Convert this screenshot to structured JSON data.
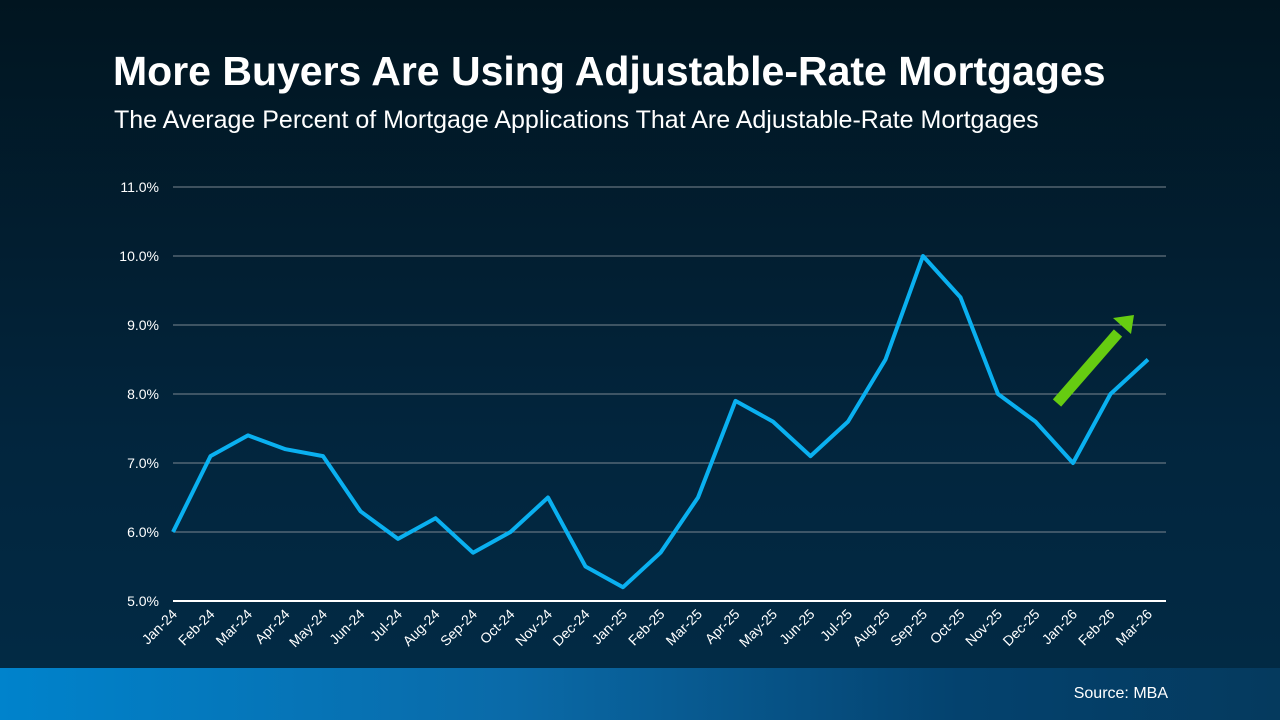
{
  "chart_data": {
    "type": "line",
    "title": "More Buyers Are Using Adjustable-Rate Mortgages",
    "subtitle": "The Average Percent of Mortgage Applications That Are Adjustable-Rate Mortgages",
    "xlabel": "",
    "ylabel": "",
    "ylim": [
      5.0,
      11.0
    ],
    "yticks": [
      "5.0%",
      "6.0%",
      "7.0%",
      "8.0%",
      "9.0%",
      "10.0%",
      "11.0%"
    ],
    "grid": "horizontal",
    "categories": [
      "Jan-24",
      "Feb-24",
      "Mar-24",
      "Apr-24",
      "May-24",
      "Jun-24",
      "Jul-24",
      "Aug-24",
      "Sep-24",
      "Oct-24",
      "Nov-24",
      "Dec-24",
      "Jan-25",
      "Feb-25",
      "Mar-25",
      "Apr-25",
      "May-25",
      "Jun-25",
      "Jul-25",
      "Aug-25",
      "Sep-25",
      "Oct-25",
      "Nov-25",
      "Dec-25",
      "Jan-26",
      "Feb-26",
      "Mar-26"
    ],
    "values": [
      6.0,
      7.1,
      7.4,
      7.2,
      7.1,
      6.3,
      5.9,
      6.2,
      5.7,
      6.0,
      6.5,
      5.5,
      5.2,
      5.7,
      6.5,
      7.9,
      7.6,
      7.1,
      7.6,
      8.5,
      10.0,
      9.4,
      8.0,
      7.6,
      7.0,
      8.0,
      8.5
    ],
    "line_color": "#0ab0f0",
    "annotation": {
      "type": "arrow-up",
      "color": "#66cc11"
    }
  },
  "footer": {
    "source": "Source: MBA"
  }
}
